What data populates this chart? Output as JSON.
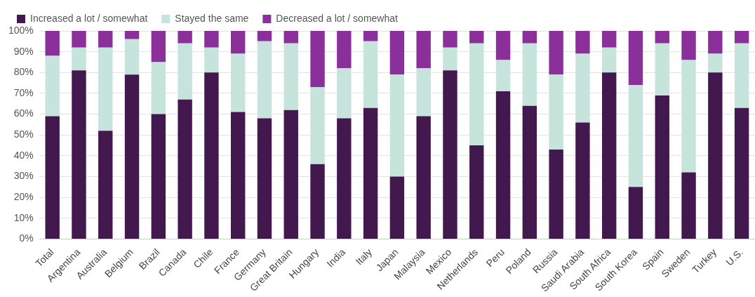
{
  "chart_data": {
    "type": "bar",
    "stacked": true,
    "categories": [
      "Total",
      "Argentina",
      "Australia",
      "Belgium",
      "Brazil",
      "Canada",
      "Chile",
      "France",
      "Germany",
      "Great Britain",
      "Hungary",
      "India",
      "Italy",
      "Japan",
      "Malaysia",
      "Mexico",
      "Netherlands",
      "Peru",
      "Poland",
      "Russia",
      "Saudi Arabia",
      "South Africa",
      "South Korea",
      "Spain",
      "Sweden",
      "Turkey",
      "U.S."
    ],
    "series": [
      {
        "name": "Increased a lot / somewhat",
        "color": "#43184f",
        "values": [
          59,
          81,
          52,
          79,
          60,
          67,
          80,
          61,
          58,
          62,
          36,
          58,
          63,
          30,
          59,
          81,
          45,
          71,
          64,
          43,
          56,
          80,
          25,
          69,
          32,
          80,
          63
        ]
      },
      {
        "name": "Stayed the same",
        "color": "#c6e3dc",
        "values": [
          29,
          11,
          40,
          17,
          25,
          27,
          12,
          28,
          37,
          32,
          37,
          24,
          32,
          49,
          23,
          11,
          49,
          15,
          30,
          36,
          33,
          12,
          49,
          25,
          54,
          9,
          31
        ]
      },
      {
        "name": "Decreased a lot / somewhat",
        "color": "#8b2f9b",
        "values": [
          12,
          8,
          8,
          4,
          15,
          6,
          8,
          11,
          5,
          6,
          27,
          18,
          5,
          21,
          18,
          8,
          6,
          14,
          6,
          21,
          11,
          8,
          26,
          6,
          14,
          11,
          6
        ]
      }
    ],
    "ylim": [
      0,
      100
    ],
    "yticks": [
      {
        "value": 0,
        "label": "0%"
      },
      {
        "value": 10,
        "label": "10%"
      },
      {
        "value": 20,
        "label": "20%"
      },
      {
        "value": 30,
        "label": "30%"
      },
      {
        "value": 40,
        "label": "40%"
      },
      {
        "value": 50,
        "label": "50%"
      },
      {
        "value": 60,
        "label": "60%"
      },
      {
        "value": 70,
        "label": "70%"
      },
      {
        "value": 80,
        "label": "80%"
      },
      {
        "value": 90,
        "label": "90%"
      },
      {
        "value": 100,
        "label": "100%"
      }
    ],
    "grid": "y",
    "legend": "top left"
  }
}
